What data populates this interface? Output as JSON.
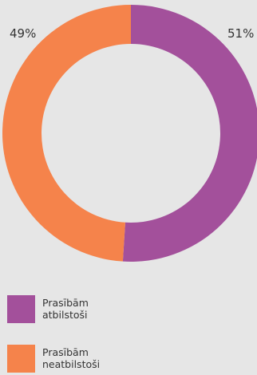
{
  "chart_data": {
    "type": "pie",
    "donut": true,
    "title": "",
    "background": "#e6e6e6",
    "slices": [
      {
        "name": "Prasībām atbilstoši",
        "value": 51,
        "label": "51%",
        "color": "#a3509b"
      },
      {
        "name": "Prasībām neatbilstoši",
        "value": 49,
        "label": "49%",
        "color": "#f5834b"
      }
    ],
    "legend": {
      "placement": "bottom-left",
      "entries": [
        {
          "label": "Prasībām atbilstoši",
          "color": "#a3509b"
        },
        {
          "label": "Prasībām neatbilstoši",
          "color": "#f5834b"
        }
      ]
    }
  }
}
